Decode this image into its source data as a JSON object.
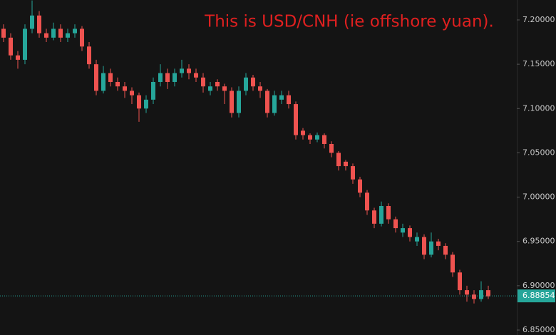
{
  "chart_data": {
    "type": "candlestick",
    "annotation": "This is USD/CNH (ie offshore yuan).",
    "annotation_color": "#e02020",
    "up_color": "#26a69a",
    "down_color": "#ef5350",
    "open": [
      7.19,
      7.18,
      7.16,
      7.155,
      7.19,
      7.205,
      7.185,
      7.18,
      7.19,
      7.18,
      7.185,
      7.19,
      7.17,
      7.15,
      7.12,
      7.14,
      7.13,
      7.125,
      7.12,
      7.115,
      7.1,
      7.11,
      7.13,
      7.14,
      7.13,
      7.14,
      7.145,
      7.14,
      7.135,
      7.12,
      7.13,
      7.125,
      7.12,
      7.095,
      7.12,
      7.135,
      7.125,
      7.12,
      7.095,
      7.11,
      7.115,
      7.105,
      7.075,
      7.07,
      7.065,
      7.07,
      7.06,
      7.05,
      7.04,
      7.035,
      7.02,
      7.005,
      6.985,
      6.97,
      6.99,
      6.975,
      6.96,
      6.965,
      6.95,
      6.955,
      6.935,
      6.95,
      6.945,
      6.935,
      6.915,
      6.895,
      6.89,
      6.885,
      6.895
    ],
    "high": [
      7.195,
      7.185,
      7.165,
      7.195,
      7.222,
      7.21,
      7.19,
      7.197,
      7.195,
      7.19,
      7.195,
      7.193,
      7.175,
      7.155,
      7.148,
      7.145,
      7.135,
      7.13,
      7.124,
      7.118,
      7.115,
      7.135,
      7.15,
      7.145,
      7.145,
      7.155,
      7.15,
      7.145,
      7.14,
      7.13,
      7.133,
      7.128,
      7.124,
      7.125,
      7.14,
      7.138,
      7.13,
      7.122,
      7.12,
      7.12,
      7.12,
      7.108,
      7.078,
      7.072,
      7.073,
      7.072,
      7.063,
      7.052,
      7.042,
      7.038,
      7.023,
      7.008,
      6.988,
      6.995,
      6.993,
      6.978,
      6.97,
      6.968,
      6.96,
      6.958,
      6.96,
      6.953,
      6.948,
      6.938,
      6.918,
      6.9,
      6.895,
      6.905,
      6.9
    ],
    "low": [
      7.175,
      7.155,
      7.145,
      7.15,
      7.185,
      7.18,
      7.175,
      7.177,
      7.175,
      7.175,
      7.18,
      7.165,
      7.145,
      7.115,
      7.117,
      7.125,
      7.12,
      7.112,
      7.105,
      7.085,
      7.095,
      7.105,
      7.125,
      7.122,
      7.125,
      7.135,
      7.133,
      7.13,
      7.118,
      7.115,
      7.12,
      7.105,
      7.09,
      7.09,
      7.115,
      7.12,
      7.112,
      7.09,
      7.092,
      7.105,
      7.1,
      7.065,
      7.065,
      7.06,
      7.062,
      7.055,
      7.045,
      7.03,
      7.03,
      7.015,
      7.0,
      6.98,
      6.965,
      6.967,
      6.97,
      6.96,
      6.955,
      6.95,
      6.945,
      6.93,
      6.932,
      6.94,
      6.93,
      6.91,
      6.89,
      6.882,
      6.88,
      6.882,
      6.885
    ],
    "close": [
      7.18,
      7.16,
      7.155,
      7.19,
      7.205,
      7.185,
      7.18,
      7.19,
      7.18,
      7.185,
      7.19,
      7.17,
      7.15,
      7.12,
      7.14,
      7.13,
      7.125,
      7.12,
      7.115,
      7.1,
      7.11,
      7.13,
      7.14,
      7.13,
      7.14,
      7.145,
      7.14,
      7.135,
      7.125,
      7.125,
      7.125,
      7.12,
      7.095,
      7.12,
      7.135,
      7.125,
      7.12,
      7.095,
      7.115,
      7.115,
      7.105,
      7.07,
      7.07,
      7.065,
      7.07,
      7.06,
      7.05,
      7.035,
      7.035,
      7.02,
      7.005,
      6.985,
      6.97,
      6.99,
      6.975,
      6.965,
      6.965,
      6.955,
      6.955,
      6.935,
      6.95,
      6.945,
      6.935,
      6.915,
      6.895,
      6.89,
      6.885,
      6.895,
      6.888
    ],
    "ylim": [
      6.8444,
      7.2225
    ],
    "yticks": [
      {
        "value": 6.85,
        "label": "6.85000"
      },
      {
        "value": 6.9,
        "label": "6.90000"
      },
      {
        "value": 6.95,
        "label": "6.95000"
      },
      {
        "value": 7.0,
        "label": "7.00000"
      },
      {
        "value": 7.05,
        "label": "7.05000"
      },
      {
        "value": 7.1,
        "label": "7.10000"
      },
      {
        "value": 7.15,
        "label": "7.15000"
      },
      {
        "value": 7.2,
        "label": "7.20000"
      }
    ],
    "last_price": 6.88854,
    "last_price_color": "#26a69a"
  }
}
